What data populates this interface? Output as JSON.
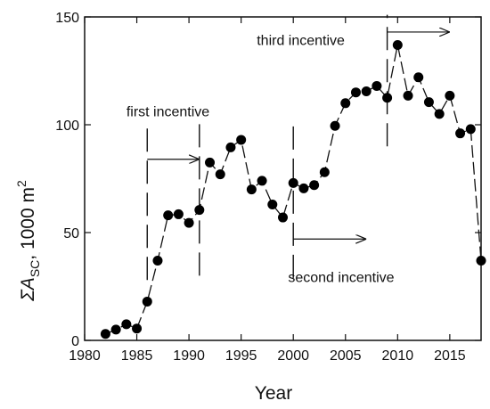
{
  "chart_data": {
    "type": "line",
    "title": "",
    "xlabel": "Year",
    "ylabel": {
      "sigma": "Σ",
      "var": "A",
      "sub": "SC",
      "unit": ", 1000 m",
      "sup": "2"
    },
    "xlim": [
      1980,
      2018
    ],
    "ylim": [
      0,
      150
    ],
    "xticks": [
      1980,
      1985,
      1990,
      1995,
      2000,
      2005,
      2010,
      2015
    ],
    "yticks": [
      0,
      50,
      100,
      150
    ],
    "grid": false,
    "legend": "none",
    "series": [
      {
        "x": [
          1982,
          1983,
          1984,
          1985,
          1986,
          1987,
          1988,
          1989,
          1990,
          1991,
          1992,
          1993,
          1994,
          1995,
          1996,
          1997,
          1998,
          1999,
          2000,
          2001,
          2002,
          2003,
          2004,
          2005,
          2006,
          2007,
          2008,
          2009,
          2010,
          2011,
          2012,
          2013,
          2014,
          2015,
          2016,
          2017,
          2018
        ],
        "y": [
          3,
          5,
          7.5,
          5.5,
          18,
          37,
          58,
          58.5,
          54.5,
          60.5,
          82.5,
          77,
          89.5,
          93,
          70,
          74,
          63,
          57,
          73,
          70.5,
          72,
          78,
          99.5,
          110,
          115,
          115.5,
          118,
          112.5,
          137,
          113.5,
          122,
          110.5,
          105,
          113.5,
          96,
          98,
          37
        ]
      }
    ],
    "annotations": [
      {
        "label": "first incentive",
        "year": 1986,
        "line_end_year": 1991,
        "line_y": [
          28,
          102
        ],
        "line2_y": [
          30,
          104
        ],
        "arrow_from_year": 1986,
        "arrow_to_year": 1991,
        "arrow_y": 84,
        "text_x_year": 1984,
        "text_y": 104
      },
      {
        "label": "second incentive",
        "year": 2000,
        "line_y": [
          29,
          102
        ],
        "arrow_from_year": 2000,
        "arrow_to_year": 2007,
        "arrow_y": 47,
        "text_x_year": 1999.5,
        "text_y": 27
      },
      {
        "label": "third incentive",
        "year": 2009,
        "line_y": [
          90,
          151
        ],
        "arrow_from_year": 2009,
        "arrow_to_year": 2015,
        "arrow_y": 143,
        "text_x_year": 1996.5,
        "text_y": 137
      }
    ]
  }
}
